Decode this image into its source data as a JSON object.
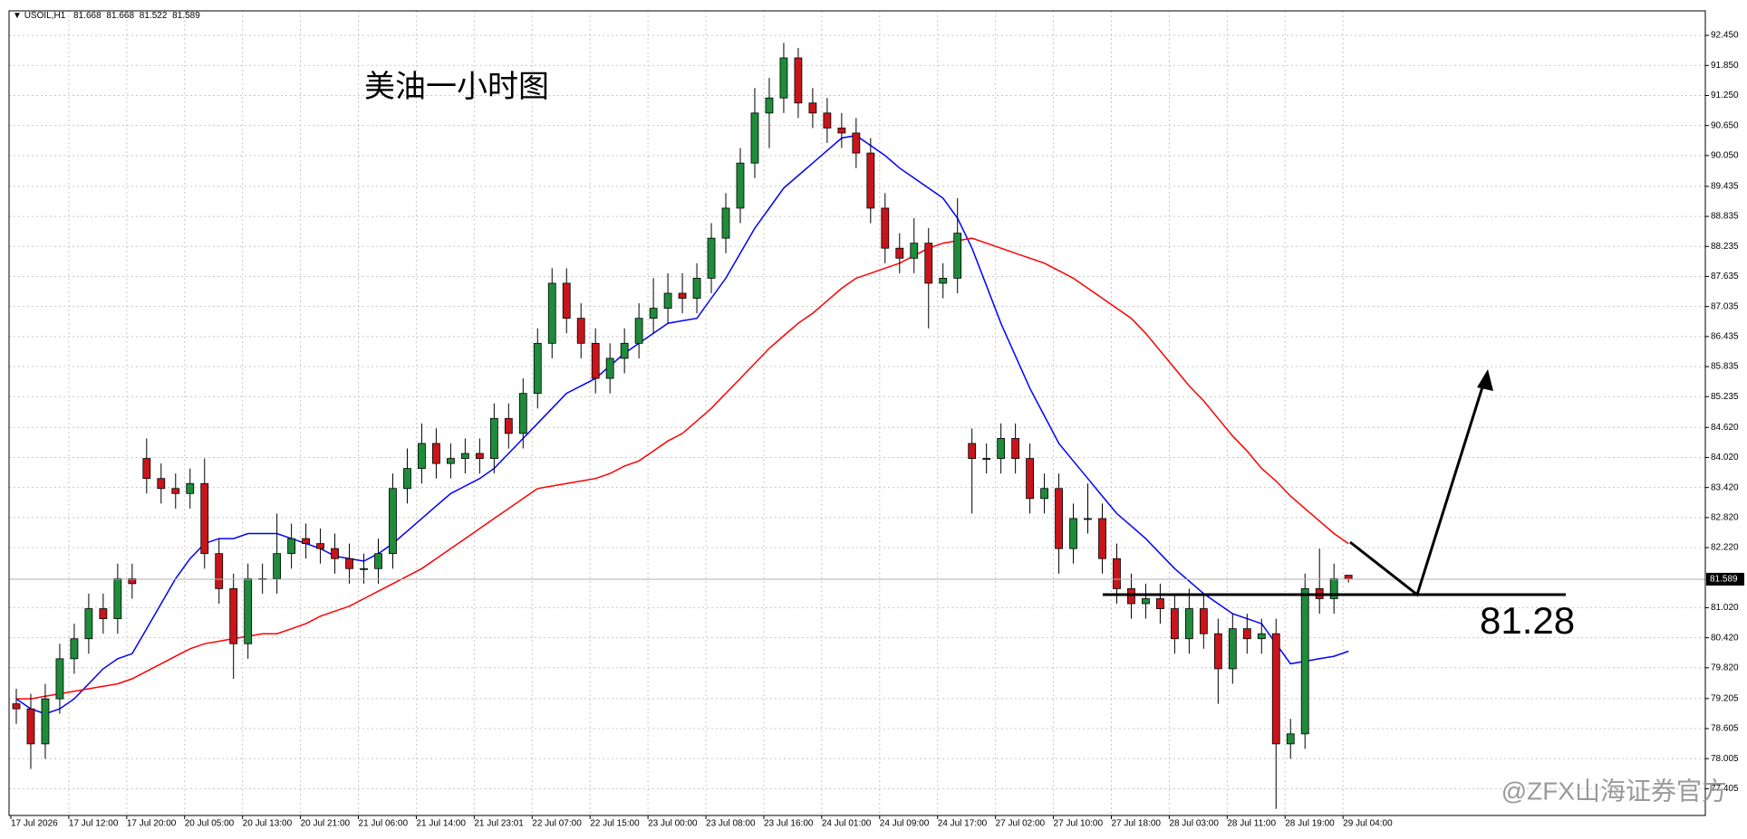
{
  "chart_data": {
    "type": "candlestick",
    "symbol": "USOIL,H1",
    "title": "美油一小时图",
    "watermark": "@ZFX山海证券官方",
    "categories": [
      "17 Jul 2026",
      null,
      null,
      null,
      "17 Jul 12:00",
      null,
      null,
      null,
      "17 Jul 20:00",
      null,
      null,
      null,
      "20 Jul 05:00",
      null,
      null,
      null,
      "20 Jul 13:00",
      null,
      null,
      null,
      "20 Jul 21:00",
      null,
      null,
      null,
      "21 Jul 06:00",
      null,
      null,
      null,
      "21 Jul 14:00",
      null,
      null,
      null,
      "21 Jul 23:01",
      null,
      null,
      null,
      "22 Jul 07:00",
      null,
      null,
      null,
      "22 Jul 15:00",
      null,
      null,
      null,
      "23 Jul 00:00",
      null,
      null,
      null,
      "23 Jul 08:00",
      null,
      null,
      null,
      "23 Jul 16:00",
      null,
      null,
      null,
      "24 Jul 01:00",
      null,
      null,
      null,
      "24 Jul 09:00",
      null,
      null,
      null,
      "24 Jul 17:00",
      null,
      null,
      null,
      "27 Jul 02:00",
      null,
      null,
      null,
      "27 Jul 10:00",
      null,
      null,
      null,
      "27 Jul 18:00",
      null,
      null,
      null,
      "28 Jul 03:00",
      null,
      null,
      null,
      "28 Jul 11:00",
      null,
      null,
      null,
      "28 Jul 19:00",
      null,
      null,
      null,
      "29 Jul 04:00"
    ],
    "open": [
      79.1,
      79.0,
      78.3,
      79.2,
      80.0,
      80.4,
      81.0,
      80.8,
      81.6,
      84.0,
      83.6,
      83.4,
      83.3,
      83.5,
      82.1,
      81.4,
      80.3,
      81.6,
      81.6,
      82.1,
      82.4,
      82.3,
      82.2,
      82.0,
      81.8,
      81.8,
      82.1,
      83.4,
      83.8,
      84.3,
      83.9,
      84.0,
      84.1,
      84.0,
      84.8,
      84.5,
      85.3,
      86.3,
      87.5,
      86.8,
      86.3,
      85.6,
      86.0,
      86.3,
      86.8,
      87.0,
      87.3,
      87.2,
      87.6,
      88.4,
      89.0,
      89.9,
      90.9,
      91.2,
      92.0,
      91.1,
      90.9,
      90.6,
      90.5,
      90.1,
      89.0,
      88.2,
      88.0,
      88.3,
      87.5,
      87.6,
      84.3,
      84.0,
      84.0,
      84.4,
      84.0,
      83.2,
      83.4,
      82.2,
      82.8,
      82.8,
      82.0,
      81.4,
      81.1,
      81.2,
      81.0,
      80.4,
      81.0,
      80.5,
      79.8,
      80.6,
      80.4,
      80.5,
      78.3,
      78.5,
      81.4,
      81.2,
      81.668
    ],
    "high": [
      79.4,
      79.3,
      79.5,
      80.3,
      80.7,
      81.3,
      81.3,
      81.9,
      81.9,
      84.4,
      83.9,
      83.7,
      83.8,
      84.0,
      82.4,
      81.7,
      81.9,
      81.9,
      82.9,
      82.7,
      82.7,
      82.6,
      82.5,
      82.3,
      82.1,
      82.4,
      83.7,
      84.2,
      84.7,
      84.6,
      84.3,
      84.4,
      84.4,
      85.1,
      85.1,
      85.6,
      86.6,
      87.8,
      87.8,
      87.1,
      86.6,
      86.3,
      86.6,
      87.1,
      87.6,
      87.7,
      87.7,
      87.9,
      88.7,
      89.3,
      90.2,
      91.4,
      91.6,
      92.3,
      92.2,
      91.4,
      91.2,
      90.9,
      90.8,
      90.4,
      89.3,
      88.5,
      88.8,
      88.6,
      87.9,
      89.2,
      84.6,
      84.3,
      84.7,
      84.7,
      84.3,
      83.7,
      83.7,
      83.1,
      83.5,
      83.1,
      82.3,
      81.7,
      81.5,
      81.5,
      81.3,
      81.4,
      81.3,
      80.8,
      80.9,
      80.9,
      80.8,
      80.8,
      78.8,
      81.7,
      82.2,
      81.9,
      81.668
    ],
    "low": [
      78.7,
      77.8,
      78.0,
      78.9,
      79.7,
      80.1,
      80.5,
      80.5,
      81.2,
      83.3,
      83.1,
      83.0,
      83.0,
      81.8,
      81.1,
      79.6,
      80.0,
      81.3,
      81.3,
      81.8,
      82.0,
      81.9,
      81.7,
      81.5,
      81.5,
      81.5,
      81.8,
      83.1,
      83.5,
      83.6,
      83.6,
      83.7,
      83.7,
      83.7,
      84.2,
      84.2,
      85.0,
      86.0,
      86.5,
      86.0,
      85.3,
      85.3,
      85.7,
      86.0,
      86.5,
      86.7,
      86.9,
      86.9,
      87.3,
      88.1,
      88.7,
      89.6,
      90.2,
      90.9,
      90.8,
      90.6,
      90.3,
      90.2,
      89.8,
      88.7,
      87.9,
      87.7,
      87.7,
      86.6,
      87.2,
      87.3,
      82.9,
      83.7,
      83.7,
      83.7,
      82.9,
      82.9,
      81.7,
      81.9,
      82.5,
      81.7,
      81.1,
      80.8,
      80.8,
      80.7,
      80.1,
      80.1,
      80.2,
      79.1,
      79.5,
      80.1,
      80.1,
      77.0,
      78.0,
      78.2,
      80.9,
      80.9,
      81.522
    ],
    "close": [
      79.0,
      78.3,
      79.2,
      80.0,
      80.4,
      81.0,
      80.8,
      81.6,
      81.5,
      83.6,
      83.4,
      83.3,
      83.5,
      82.1,
      81.4,
      80.3,
      81.6,
      81.6,
      82.1,
      82.4,
      82.3,
      82.2,
      82.0,
      81.8,
      81.8,
      82.1,
      83.4,
      83.8,
      84.3,
      83.9,
      84.0,
      84.1,
      84.0,
      84.8,
      84.5,
      85.3,
      86.3,
      87.5,
      86.8,
      86.3,
      85.6,
      86.0,
      86.3,
      86.8,
      87.0,
      87.3,
      87.2,
      87.6,
      88.4,
      89.0,
      89.9,
      90.9,
      91.2,
      92.0,
      91.1,
      90.9,
      90.6,
      90.5,
      90.1,
      89.0,
      88.2,
      88.0,
      88.3,
      87.5,
      87.6,
      88.5,
      84.0,
      84.0,
      84.4,
      84.0,
      83.2,
      83.4,
      82.2,
      82.8,
      82.8,
      82.0,
      81.4,
      81.1,
      81.2,
      81.0,
      80.4,
      81.0,
      80.5,
      79.8,
      80.6,
      80.4,
      80.5,
      78.3,
      78.5,
      81.4,
      81.2,
      81.6,
      81.589
    ],
    "up_color": "#1e8c3a",
    "down_color": "#c8151b",
    "series": [
      {
        "color": "#0000ff",
        "values": [
          79.2,
          79.0,
          78.9,
          79.0,
          79.2,
          79.5,
          79.8,
          80.0,
          80.1,
          80.6,
          81.1,
          81.6,
          82.0,
          82.3,
          82.4,
          82.4,
          82.5,
          82.5,
          82.5,
          82.4,
          82.3,
          82.2,
          82.05,
          82.0,
          81.95,
          82.1,
          82.3,
          82.55,
          82.8,
          83.05,
          83.3,
          83.45,
          83.6,
          83.8,
          84.1,
          84.4,
          84.7,
          85.0,
          85.3,
          85.45,
          85.6,
          85.85,
          86.1,
          86.3,
          86.5,
          86.7,
          86.75,
          86.8,
          87.2,
          87.6,
          88.1,
          88.6,
          89.0,
          89.4,
          89.65,
          89.9,
          90.15,
          90.4,
          90.45,
          90.25,
          90.05,
          89.8,
          89.6,
          89.4,
          89.2,
          88.8,
          88.2,
          87.45,
          86.7,
          86.05,
          85.4,
          84.85,
          84.3,
          83.95,
          83.6,
          83.25,
          82.9,
          82.65,
          82.4,
          82.1,
          81.8,
          81.55,
          81.3,
          81.1,
          80.9,
          80.8,
          80.7,
          80.3,
          79.9,
          79.95,
          80.0,
          80.05,
          80.15
        ]
      },
      {
        "color": "#ff0000",
        "values": [
          79.2,
          79.2,
          79.25,
          79.3,
          79.35,
          79.4,
          79.45,
          79.5,
          79.6,
          79.75,
          79.9,
          80.05,
          80.2,
          80.3,
          80.35,
          80.4,
          80.45,
          80.5,
          80.5,
          80.6,
          80.7,
          80.85,
          80.95,
          81.05,
          81.2,
          81.35,
          81.5,
          81.65,
          81.8,
          82.0,
          82.2,
          82.4,
          82.6,
          82.8,
          83.0,
          83.2,
          83.4,
          83.45,
          83.5,
          83.55,
          83.6,
          83.7,
          83.85,
          83.95,
          84.15,
          84.35,
          84.5,
          84.75,
          85.0,
          85.3,
          85.6,
          85.9,
          86.2,
          86.45,
          86.7,
          86.9,
          87.15,
          87.4,
          87.6,
          87.7,
          87.8,
          87.9,
          88.05,
          88.2,
          88.3,
          88.35,
          88.4,
          88.3,
          88.2,
          88.1,
          88.0,
          87.9,
          87.75,
          87.6,
          87.4,
          87.2,
          87.0,
          86.8,
          86.5,
          86.15,
          85.8,
          85.45,
          85.15,
          84.8,
          84.45,
          84.15,
          83.8,
          83.55,
          83.25,
          83.0,
          82.75,
          82.5,
          82.3
        ]
      }
    ],
    "level": 81.28,
    "ylim": [
      76.87,
      92.94
    ],
    "yticks": [
      {
        "value": 92.45,
        "label": "92.450"
      },
      {
        "value": 91.85,
        "label": "91.850"
      },
      {
        "value": 91.25,
        "label": "91.250"
      },
      {
        "value": 90.65,
        "label": "90.650"
      },
      {
        "value": 90.05,
        "label": "90.050"
      },
      89.435,
      88.835,
      88.235,
      87.635,
      87.035,
      86.435,
      85.835,
      85.235,
      {
        "value": 84.62,
        "label": "84.620"
      },
      {
        "value": 84.02,
        "label": "84.020"
      },
      {
        "value": 83.42,
        "label": "83.420"
      },
      {
        "value": 82.82,
        "label": "82.820"
      },
      {
        "value": 82.22,
        "label": "82.220"
      },
      {
        "value": 81.02,
        "label": "81.020"
      },
      {
        "value": 80.42,
        "label": "80.420"
      },
      {
        "value": 79.82,
        "label": "79.820"
      },
      79.205,
      78.605,
      78.005,
      77.405
    ],
    "grid": true
  }
}
